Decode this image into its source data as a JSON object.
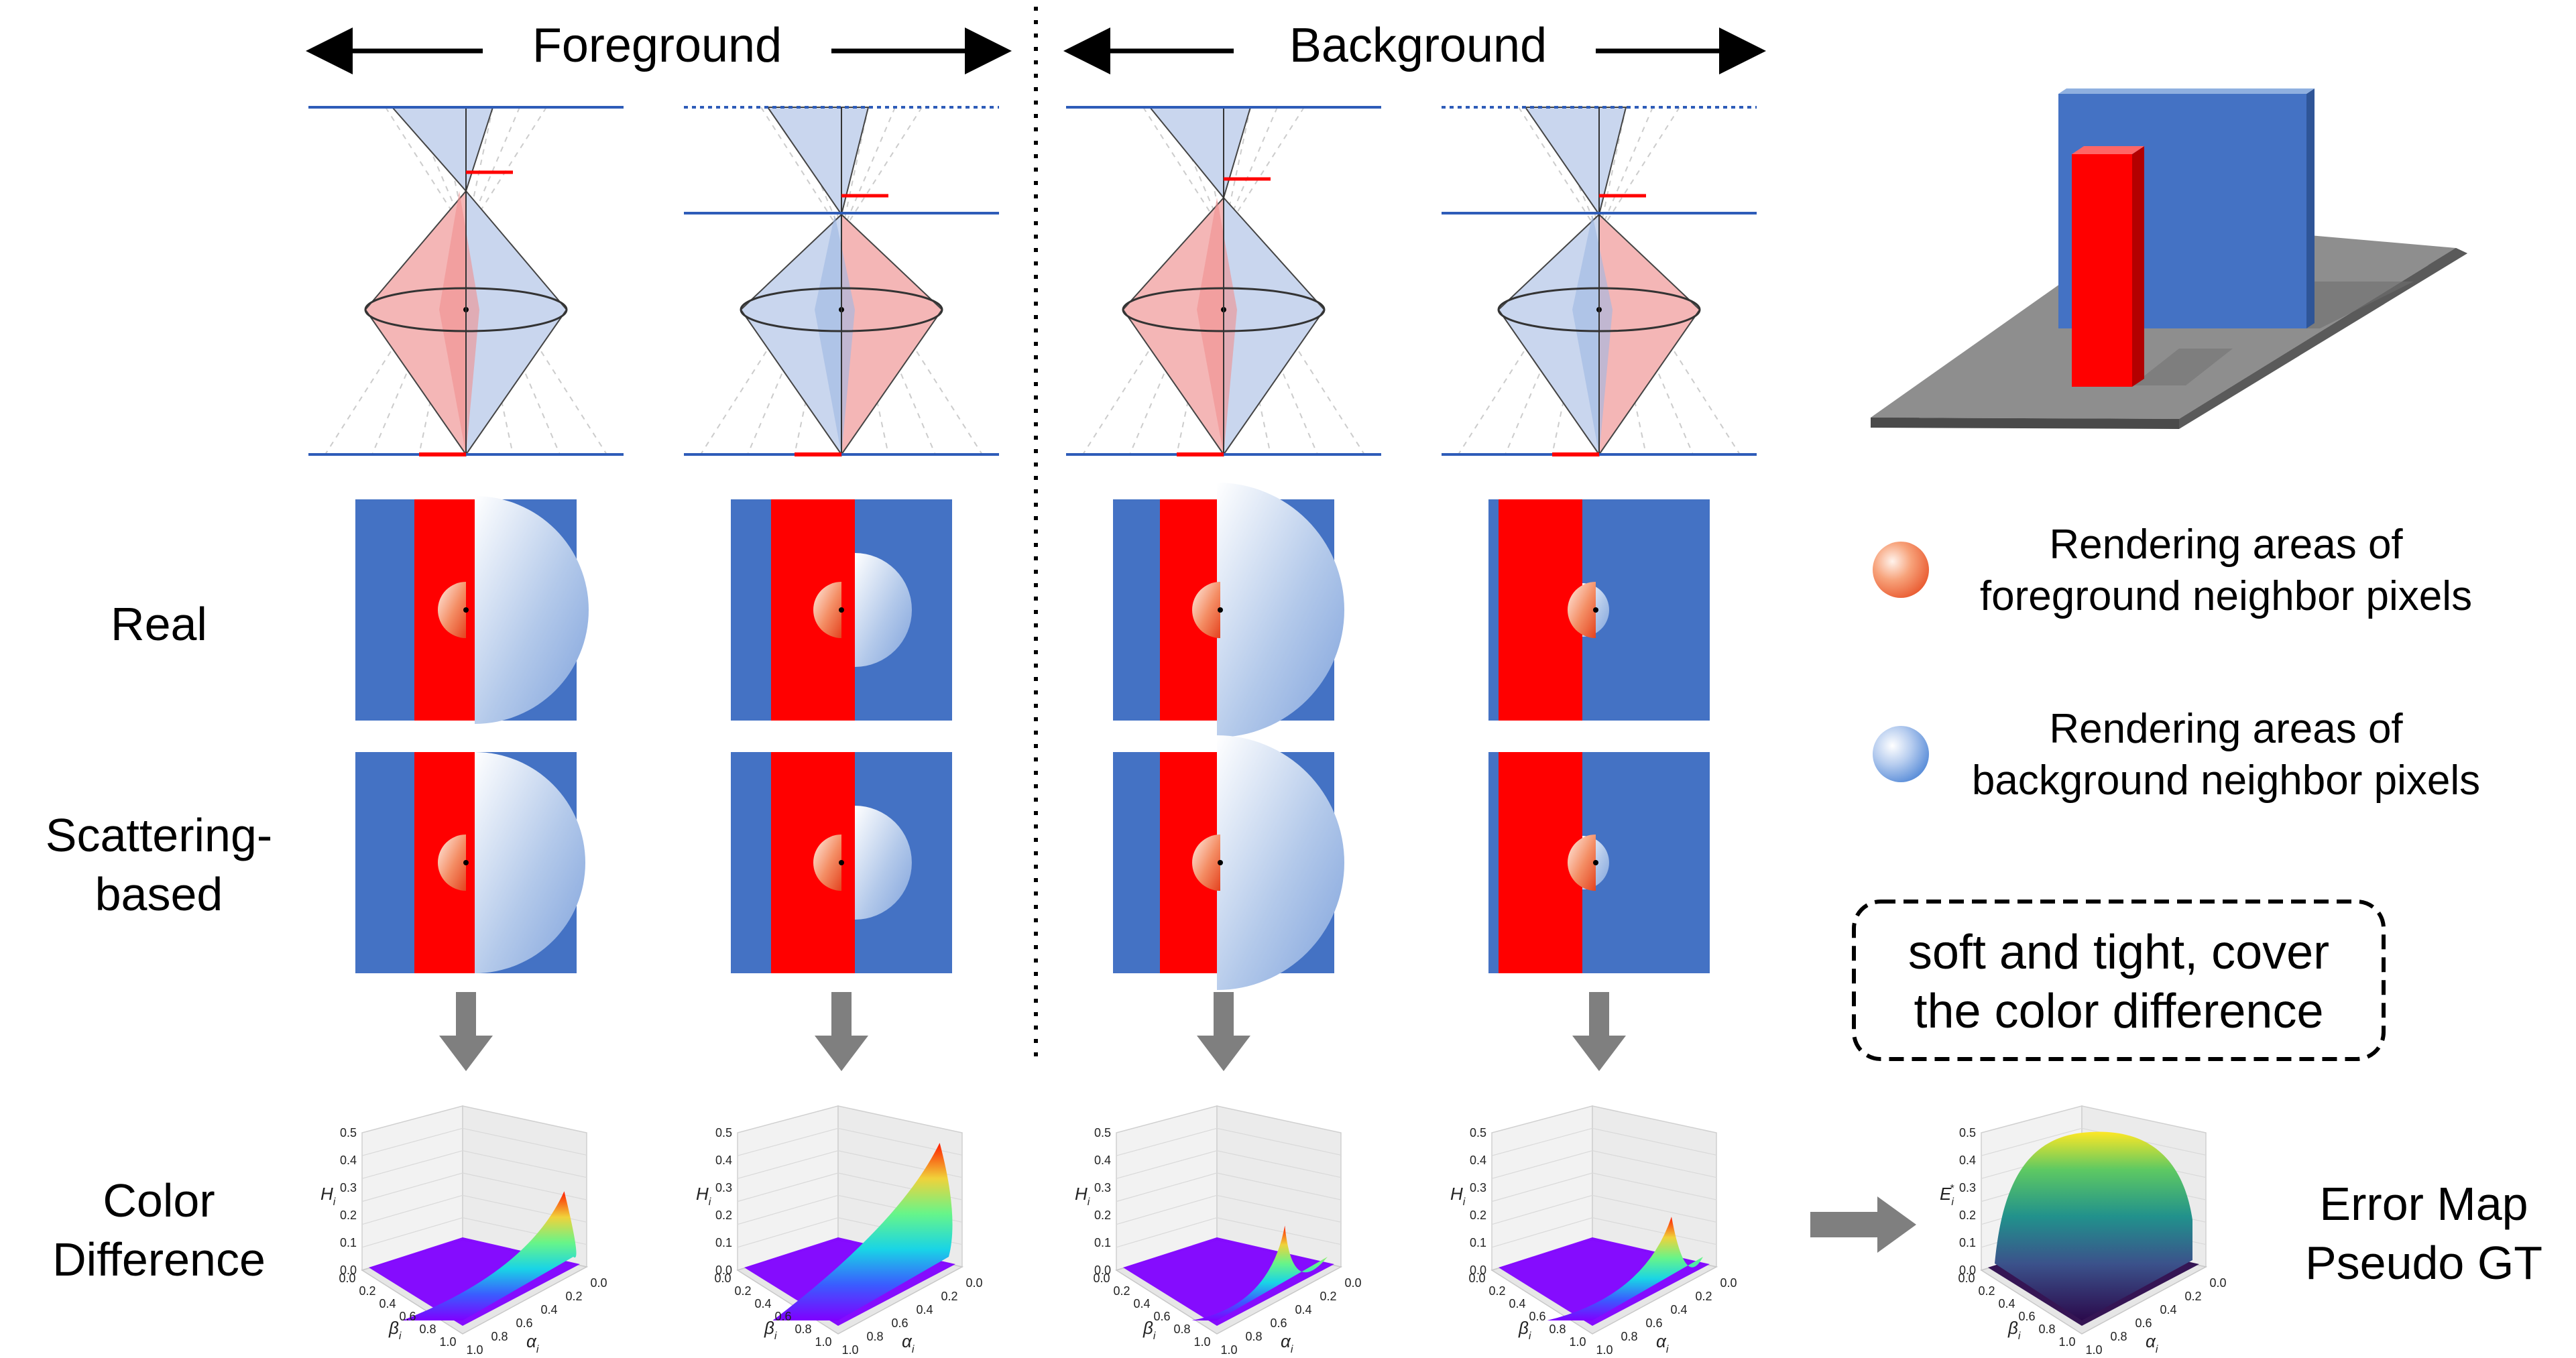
{
  "header": {
    "foreground": "Foreground",
    "background": "Background"
  },
  "rows": {
    "real": "Real",
    "scattering_line1": "Scattering-",
    "scattering_line2": "based",
    "color_line1": "Color",
    "color_line2": "Difference"
  },
  "legend": {
    "fg_line1": "Rendering areas of",
    "fg_line2": "foreground neighbor pixels",
    "bg_line1": "Rendering areas of",
    "bg_line2": "background neighbor pixels"
  },
  "note": {
    "line1": "soft and tight, cover",
    "line2": "the color difference"
  },
  "error_map": {
    "line1": "Error Map",
    "line2": "Pseudo GT"
  },
  "plots": {
    "z_ticks": [
      "0.0",
      "0.1",
      "0.2",
      "0.3",
      "0.4",
      "0.5"
    ],
    "x_ticks": [
      "1.0",
      "0.8",
      "0.6",
      "0.4",
      "0.2",
      "0.0"
    ],
    "y_ticks": [
      "0.0",
      "0.2",
      "0.4",
      "0.6",
      "0.8",
      "1.0"
    ],
    "z_label_base": "H",
    "z_label_sub": "i",
    "x_label_base": "α",
    "x_label_sub": "i",
    "y_label_base": "β",
    "y_label_sub": "i",
    "err_label_base": "E",
    "err_label_sub": "i",
    "err_label_sup": "*"
  },
  "colors": {
    "blue": "#4472c4",
    "red": "#ff0000",
    "pink_fill": "#f4b6b6",
    "lightblue_fill": "#c9d6ee",
    "gray_arrow": "#7f7f7f",
    "floor": "#8c8c8c"
  }
}
